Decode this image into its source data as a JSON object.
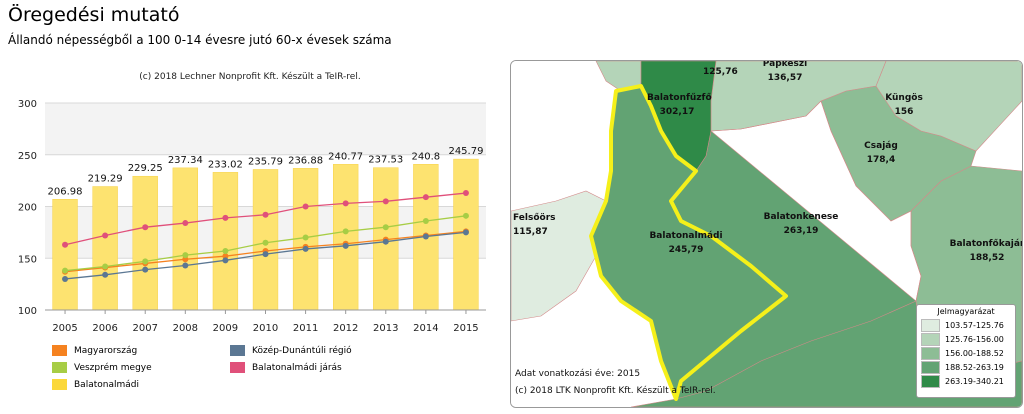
{
  "title": "Öregedési mutató",
  "subtitle": "Állandó népességből a 100 0-14 évesre jutó 60-x évesek száma",
  "chart_credit": "(c) 2018 Lechner Nonprofit Kft. Készült a TeIR-rel.",
  "chart_data": {
    "type": "bar",
    "categories": [
      "2005",
      "2006",
      "2007",
      "2008",
      "2009",
      "2010",
      "2011",
      "2012",
      "2013",
      "2014",
      "2015"
    ],
    "ylim": [
      100,
      300
    ],
    "yticks": [
      100,
      150,
      200,
      250,
      300
    ],
    "grid": true,
    "bar_series": {
      "name": "Balatonalmádi",
      "color": "#fde370",
      "values": [
        206.98,
        219.29,
        229.25,
        237.34,
        233.02,
        235.79,
        236.88,
        240.77,
        237.53,
        240.8,
        245.79
      ],
      "labels": [
        "206.98",
        "219.29",
        "229.25",
        "237.34",
        "233.02",
        "235.79",
        "236.88",
        "240.77",
        "237.53",
        "240.8",
        "245.79"
      ]
    },
    "line_series": [
      {
        "name": "Magyarország",
        "color": "#f58220",
        "values": [
          137,
          141,
          145,
          149,
          152,
          157,
          161,
          164,
          168,
          172,
          176
        ]
      },
      {
        "name": "Közép-Dunántúli régió",
        "color": "#5b7793",
        "values": [
          130,
          134,
          139,
          143,
          148,
          154,
          159,
          162,
          166,
          171,
          175
        ]
      },
      {
        "name": "Veszprém megye",
        "color": "#a7cd45",
        "values": [
          138,
          142,
          147,
          153,
          157,
          165,
          170,
          176,
          180,
          186,
          191
        ]
      },
      {
        "name": "Balatonalmádi járás",
        "color": "#e0507a",
        "values": [
          163,
          172,
          180,
          184,
          189,
          192,
          200,
          203,
          205,
          209,
          213
        ]
      }
    ],
    "legend": [
      {
        "name": "Magyarország",
        "color": "#f58220"
      },
      {
        "name": "Közép-Dunántúli régió",
        "color": "#5b7793"
      },
      {
        "name": "Veszprém megye",
        "color": "#a7cd45"
      },
      {
        "name": "Balatonalmádi járás",
        "color": "#e0507a"
      },
      {
        "name": "Balatonalmádi",
        "color": "#fbd83a"
      }
    ]
  },
  "map": {
    "regions": [
      {
        "name": "Balatonfőkajár",
        "value": "188,52",
        "color": "#8dbd95"
      },
      {
        "name": "Csajág",
        "value": "178,4",
        "color": "#8dbd95"
      },
      {
        "name": "Küngös",
        "value": "156",
        "color": "#b4d4b8"
      },
      {
        "name": "Papkeszi",
        "value": "136,57",
        "color": "#b4d4b8"
      },
      {
        "name": "",
        "value": "125,76",
        "color": "#b4d4b8"
      },
      {
        "name": "Felsőörs",
        "value": "115,87",
        "color": "#dfece0"
      },
      {
        "name": "Balatonkenese",
        "value": "263,19",
        "color": "#62a373"
      },
      {
        "name": "Balatonfűzfő",
        "value": "302,17",
        "color": "#2f8a48"
      },
      {
        "name": "Balatonalmádi",
        "value": "245,79",
        "color": "#62a373"
      }
    ],
    "highlight_color": "#f5f01a",
    "footer_year": "Adat vonatkozási éve: 2015",
    "footer_credit": "(c) 2018 LTK Nonprofit Kft. Készült a TeIR-rel.",
    "legend_title": "Jelmagyarázat",
    "legend": [
      {
        "range": "103.57-125.76",
        "color": "#dfece0"
      },
      {
        "range": "125.76-156.00",
        "color": "#b4d4b8"
      },
      {
        "range": "156.00-188.52",
        "color": "#8dbd95"
      },
      {
        "range": "188.52-263.19",
        "color": "#62a373"
      },
      {
        "range": "263.19-340.21",
        "color": "#2f8a48"
      }
    ]
  }
}
